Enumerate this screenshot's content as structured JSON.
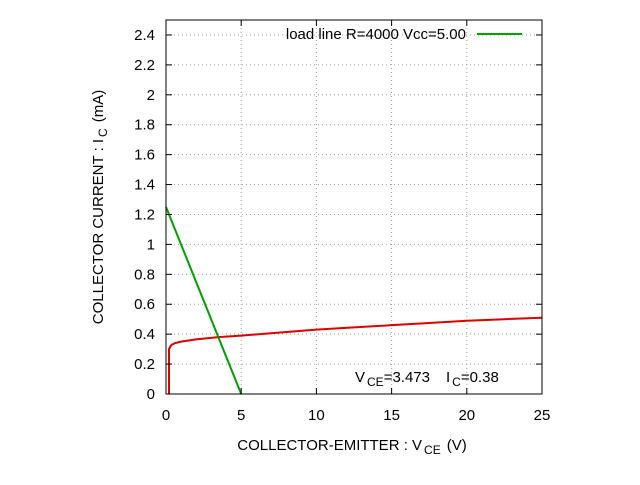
{
  "chart_data": {
    "type": "line",
    "title": "",
    "xlabel": {
      "main": "COLLECTOR-EMITTER : V",
      "sub": "CE",
      "unit": "(V)"
    },
    "ylabel": {
      "main": "COLLECTOR CURRENT : I",
      "sub": "C",
      "unit": "(mA)"
    },
    "xlim": [
      0,
      25
    ],
    "ylim": [
      0,
      2.5
    ],
    "x_ticks": [
      "0",
      "5",
      "10",
      "15",
      "20",
      "25"
    ],
    "y_ticks": [
      "0",
      "0.2",
      "0.4",
      "0.6",
      "0.8",
      "1",
      "1.2",
      "1.4",
      "1.6",
      "1.8",
      "2",
      "2.2",
      "2.4"
    ],
    "grid": true,
    "legend_position": "top-right",
    "series": [
      {
        "name": "",
        "color": "#dd0000",
        "x": [
          0.2,
          0.2,
          0.25,
          0.3,
          0.4,
          0.6,
          1,
          2,
          3,
          3.47,
          5,
          7.5,
          10,
          12.5,
          15,
          17.5,
          20,
          22.5,
          25
        ],
        "y": [
          0,
          0.3,
          0.31,
          0.32,
          0.33,
          0.34,
          0.35,
          0.365,
          0.375,
          0.38,
          0.39,
          0.41,
          0.43,
          0.445,
          0.46,
          0.475,
          0.49,
          0.5,
          0.51
        ]
      },
      {
        "name": "load line R=4000 Vcc=5.00",
        "color": "#00a000",
        "x": [
          0,
          5
        ],
        "y": [
          1.25,
          0
        ]
      }
    ],
    "annotation": {
      "v_label": "V",
      "v_sub": "CE",
      "v_value": "=3.473",
      "i_label": "I",
      "i_sub": "C",
      "i_value": "=0.38"
    }
  }
}
